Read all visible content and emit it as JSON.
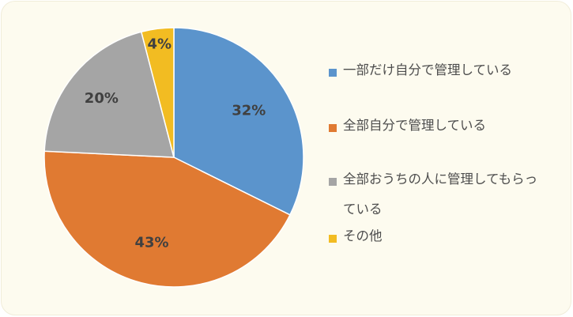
{
  "chart_data": {
    "type": "pie",
    "slices": [
      {
        "label": "一部だけ自分で管理している",
        "value": 32,
        "display": "32%",
        "color": "#5b94cc"
      },
      {
        "label": "全部自分で管理している",
        "value": 43,
        "display": "43%",
        "color": "#e07a32"
      },
      {
        "label": "全部おうちの人に管理してもらっている",
        "value": 20,
        "display": "20%",
        "color": "#a5a5a5"
      },
      {
        "label": "その他",
        "value": 4,
        "display": "4%",
        "color": "#f2bc22"
      }
    ],
    "legend_position": "right",
    "start_angle": "top, clockwise"
  }
}
